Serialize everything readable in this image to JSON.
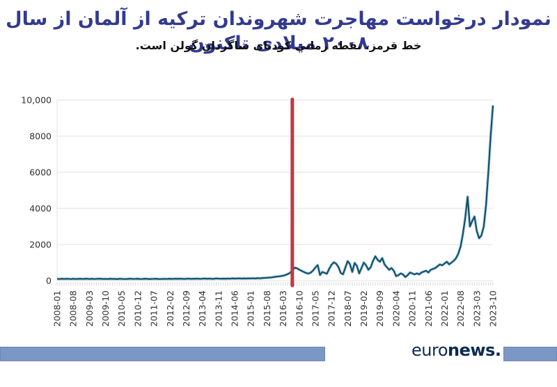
{
  "header": {
    "title": "نمودار درخواست مهاجرت شهروندان ترکیه از آلمان از سال ۲۰۰۸ میلادی تاکنون",
    "subtitle": "خط قرمز، نقطه زمانی کودتای شاگردان گولن است."
  },
  "footer": {
    "logo_regular": "euro",
    "logo_bold": "news."
  },
  "colors": {
    "title": "#333a8f",
    "subtitle": "#111111",
    "line": "#17506b",
    "line_halo": "#c4e1ee",
    "event_line": "#c13845",
    "grid": "#e2e2e2",
    "minor_tick": "#d9d9d9",
    "tick_label": "#303030",
    "banner_fill": "#7b97c4",
    "banner_border": "#6d89b8",
    "logo": "#0a2c50"
  },
  "chart_data": {
    "type": "line",
    "x_start": "2008-01",
    "x_end": "2023-10",
    "x_tick_interval_months": 7,
    "x_tick_labels": [
      "2008-01",
      "2008-08",
      "2009-03",
      "2009-10",
      "2010-05",
      "2010-12",
      "2011-07",
      "2012-02",
      "2012-09",
      "2013-04",
      "2013-11",
      "2014-06",
      "2015-01",
      "2015-08",
      "2016-03",
      "2016-10",
      "2017-05",
      "2017-12",
      "2018-07",
      "2019-02",
      "2019-09",
      "2020-04",
      "2020-11",
      "2021-06",
      "2022-01",
      "2022-08",
      "2023-03",
      "2023-10"
    ],
    "y_ticks": [
      0,
      2000,
      4000,
      6000,
      8000,
      10000
    ],
    "y_tick_labels": [
      "0",
      "2000",
      "4000",
      "6000",
      "8000",
      "10,000"
    ],
    "ylim": [
      0,
      10000
    ],
    "grid": "horizontal",
    "legend": "none",
    "event_line_x": "2016-07",
    "series": [
      {
        "name": "monthly-applications",
        "start": "2008-01",
        "values": [
          100,
          92,
          108,
          96,
          104,
          99,
          94,
          109,
          91,
          101,
          106,
          96,
          102,
          112,
          94,
          106,
          91,
          101,
          111,
          104,
          96,
          99,
          92,
          107,
          96,
          101,
          89,
          104,
          99,
          94,
          91,
          102,
          110,
          95,
          100,
          106,
          92,
          97,
          106,
          99,
          90,
          96,
          101,
          107,
          94,
          91,
          99,
          96,
          101,
          107,
          96,
          112,
          102,
          106,
          111,
          97,
          104,
          116,
          101,
          109,
          106,
          117,
          101,
          111,
          121,
          107,
          114,
          109,
          102,
          122,
          116,
          111,
          116,
          106,
          121,
          112,
          126,
          117,
          122,
          131,
          116,
          126,
          121,
          131,
          127,
          136,
          122,
          141,
          131,
          146,
          152,
          161,
          172,
          182,
          202,
          225,
          235,
          255,
          275,
          315,
          365,
          435,
          560,
          720,
          690,
          612,
          545,
          485,
          425,
          395,
          445,
          565,
          730,
          860,
          315,
          485,
          435,
          385,
          655,
          880,
          1020,
          940,
          760,
          425,
          355,
          720,
          1080,
          920,
          485,
          980,
          820,
          405,
          700,
          1000,
          850,
          605,
          750,
          1100,
          1350,
          1150,
          1050,
          1250,
          900,
          750,
          605,
          700,
          550,
          255,
          305,
          405,
          350,
          205,
          305,
          450,
          405,
          350,
          405,
          355,
          450,
          505,
          550,
          455,
          600,
          650,
          700,
          800,
          900,
          850,
          950,
          1050,
          905,
          1000,
          1100,
          1250,
          1500,
          1900,
          2600,
          3500,
          4650,
          3000,
          3300,
          3550,
          2750,
          2350,
          2500,
          3000,
          4200,
          6000,
          8000,
          9700
        ]
      }
    ]
  }
}
